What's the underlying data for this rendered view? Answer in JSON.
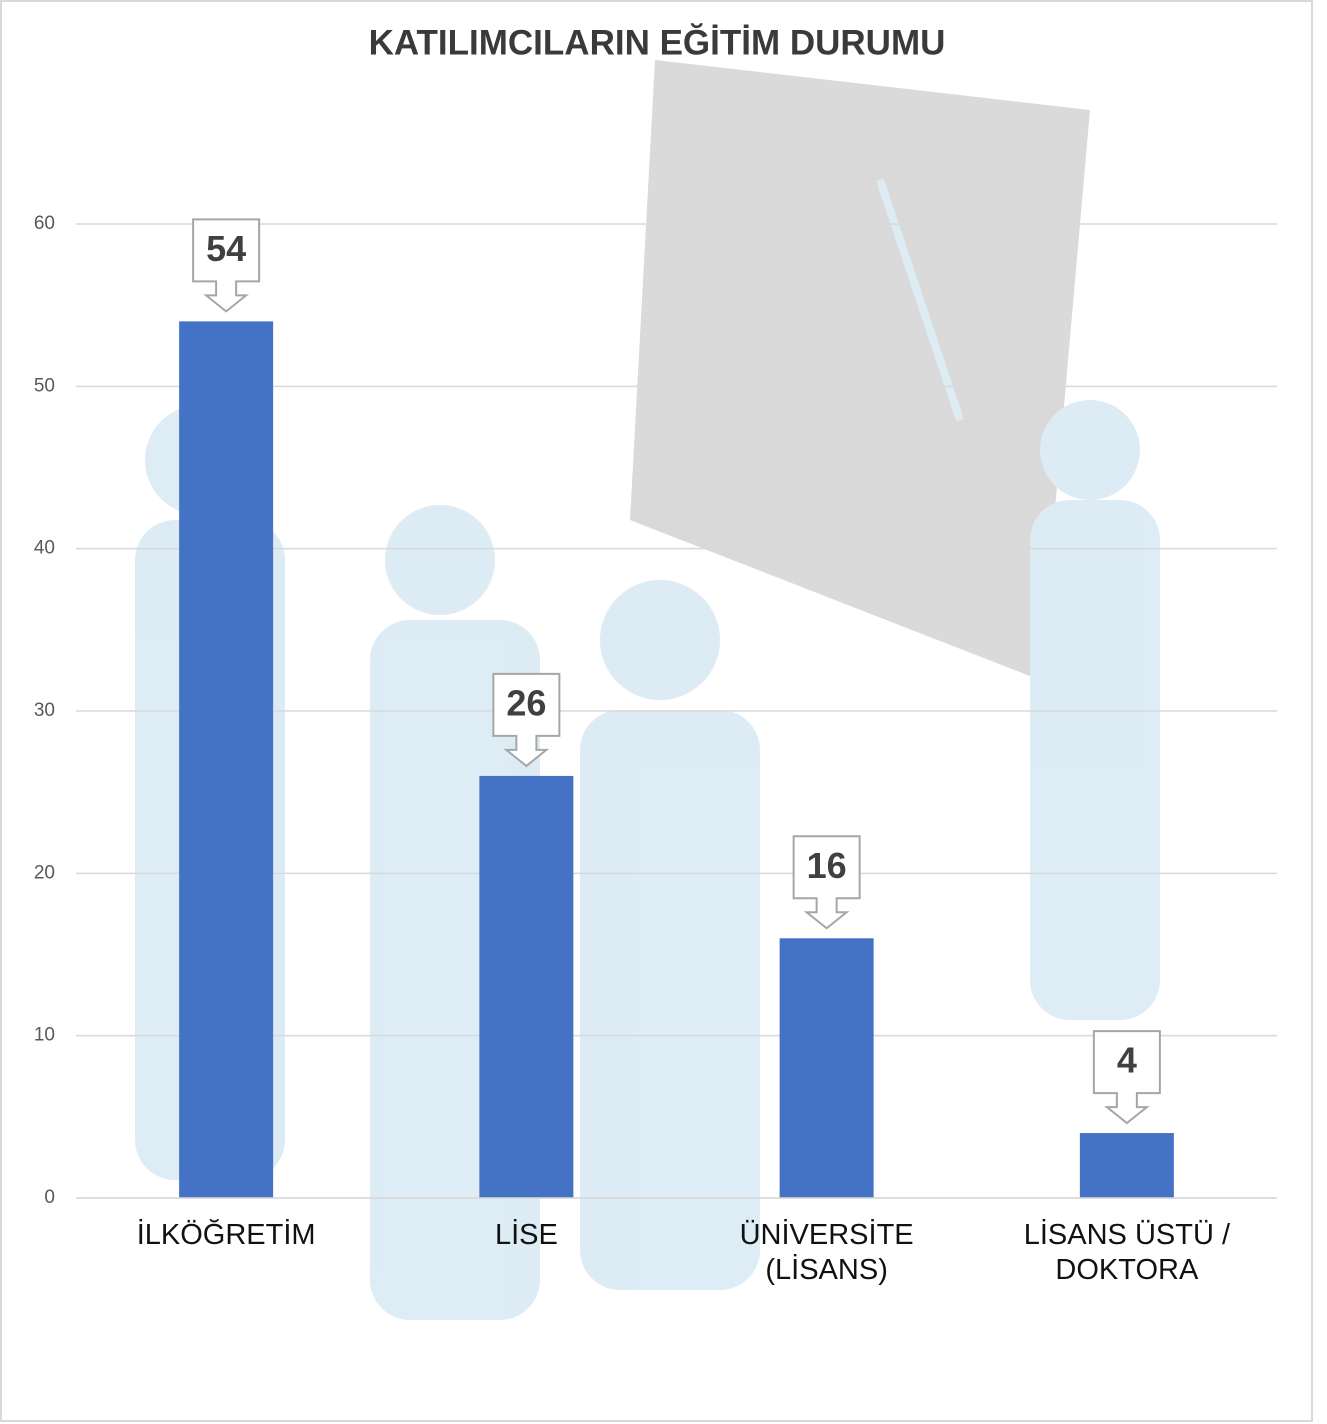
{
  "chart_data": {
    "type": "bar",
    "title": "KATILIMCILARIN EĞİTİM DURUMU",
    "categories": [
      "İLKÖĞRETİM",
      "LİSE",
      "ÜNİVERSİTE (LİSANS)",
      "LİSANS ÜSTÜ / DOKTORA"
    ],
    "values": [
      54,
      26,
      16,
      4
    ],
    "color": "#4472c4",
    "ylim": [
      0,
      60
    ],
    "yticks": [
      0,
      10,
      20,
      30,
      40,
      50,
      60
    ],
    "grid": true
  }
}
